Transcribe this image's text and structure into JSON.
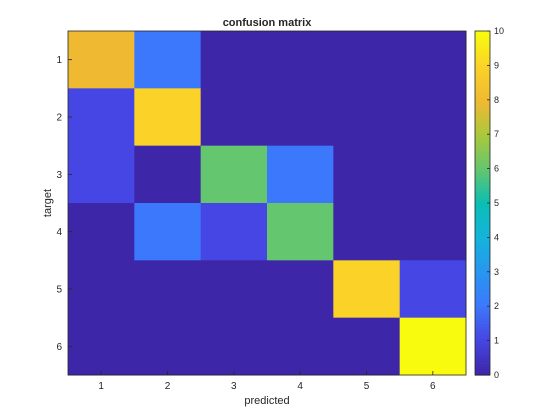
{
  "chart_data": {
    "type": "heatmap",
    "title": "confusion matrix",
    "xlabel": "predicted",
    "ylabel": "target",
    "x_ticks": [
      "1",
      "2",
      "3",
      "4",
      "5",
      "6"
    ],
    "y_ticks": [
      "1",
      "2",
      "3",
      "4",
      "5",
      "6"
    ],
    "matrix": [
      [
        8,
        2,
        0,
        0,
        0,
        0
      ],
      [
        1,
        9,
        0,
        0,
        0,
        0
      ],
      [
        1,
        0,
        6,
        2,
        0,
        0
      ],
      [
        0,
        2,
        1,
        6,
        0,
        0
      ],
      [
        0,
        0,
        0,
        0,
        9,
        1
      ],
      [
        0,
        0,
        0,
        0,
        0,
        10
      ]
    ],
    "colormap": "parula",
    "clim": [
      0,
      10
    ],
    "colorbar": {
      "ticks": [
        "0",
        "1",
        "2",
        "3",
        "4",
        "5",
        "6",
        "7",
        "8",
        "9",
        "10"
      ],
      "placement": "right"
    }
  }
}
